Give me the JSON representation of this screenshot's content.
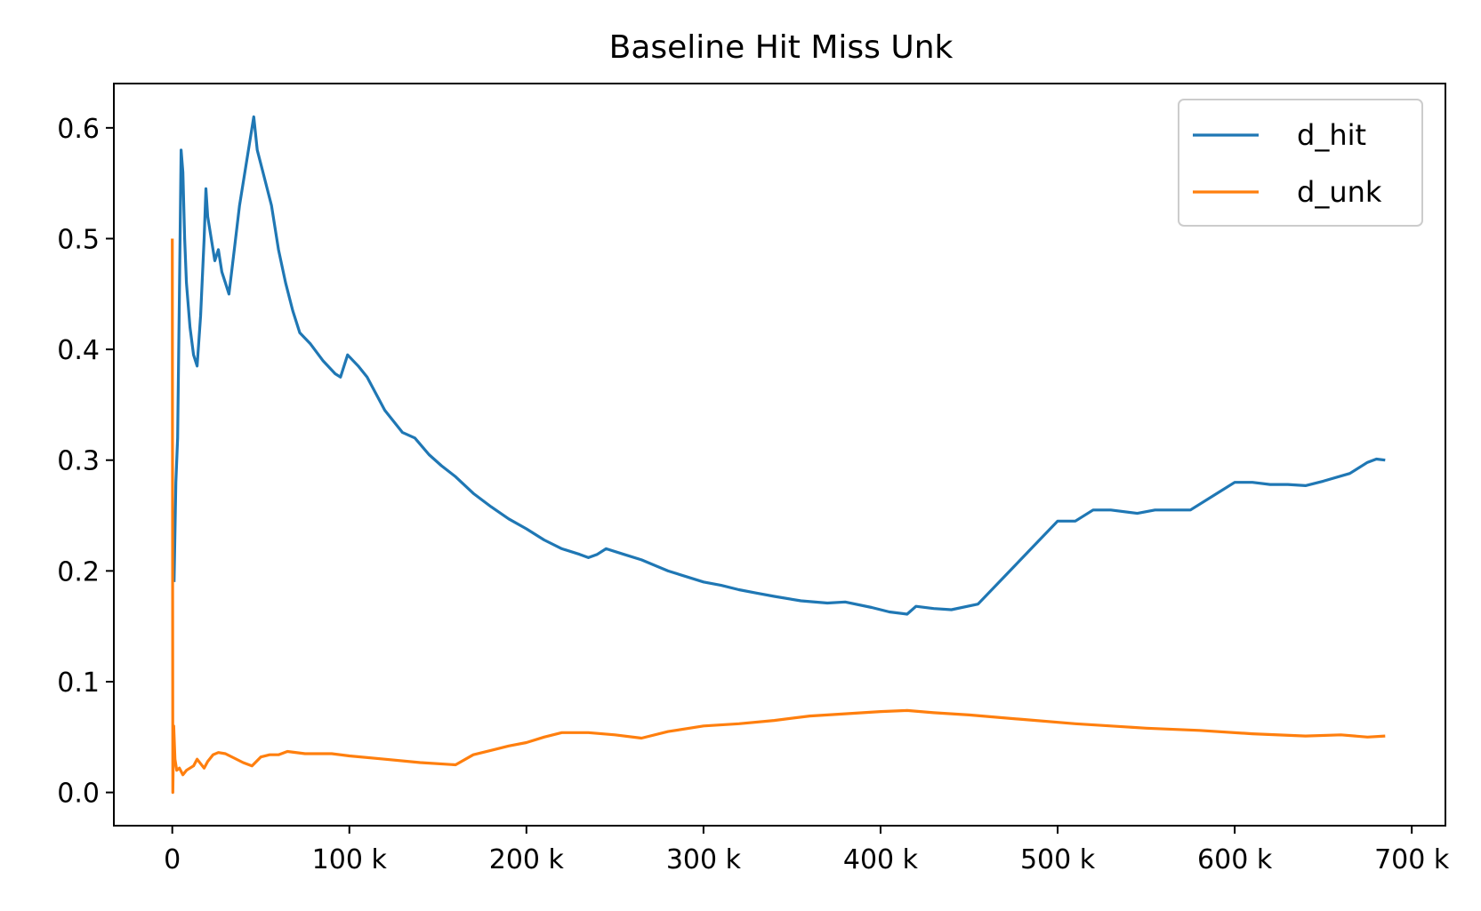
{
  "chart_data": {
    "type": "line",
    "title": "Baseline Hit Miss Unk",
    "xlabel": "",
    "ylabel": "",
    "xlim": [
      -33000,
      719000
    ],
    "ylim": [
      -0.03,
      0.64
    ],
    "xticks": [
      0,
      100000,
      200000,
      300000,
      400000,
      500000,
      600000,
      700000
    ],
    "xtick_labels": [
      "0",
      "100 k",
      "200 k",
      "300 k",
      "400 k",
      "500 k",
      "600 k",
      "700 k"
    ],
    "yticks": [
      0.0,
      0.1,
      0.2,
      0.3,
      0.4,
      0.5,
      0.6
    ],
    "ytick_labels": [
      "0.0",
      "0.1",
      "0.2",
      "0.3",
      "0.4",
      "0.5",
      "0.6"
    ],
    "grid": false,
    "legend_position": "top-right",
    "series": [
      {
        "name": "d_hit",
        "color": "#1f77b4",
        "points": [
          [
            1000,
            0.19
          ],
          [
            2000,
            0.28
          ],
          [
            3000,
            0.32
          ],
          [
            4000,
            0.45
          ],
          [
            5000,
            0.58
          ],
          [
            6000,
            0.56
          ],
          [
            7000,
            0.5
          ],
          [
            8000,
            0.46
          ],
          [
            10000,
            0.42
          ],
          [
            12000,
            0.395
          ],
          [
            14000,
            0.385
          ],
          [
            16000,
            0.43
          ],
          [
            18000,
            0.5
          ],
          [
            19000,
            0.545
          ],
          [
            20000,
            0.52
          ],
          [
            22000,
            0.5
          ],
          [
            24000,
            0.48
          ],
          [
            26000,
            0.49
          ],
          [
            28000,
            0.47
          ],
          [
            30000,
            0.46
          ],
          [
            32000,
            0.45
          ],
          [
            35000,
            0.49
          ],
          [
            38000,
            0.53
          ],
          [
            41000,
            0.56
          ],
          [
            44000,
            0.59
          ],
          [
            46000,
            0.61
          ],
          [
            48000,
            0.58
          ],
          [
            52000,
            0.555
          ],
          [
            56000,
            0.53
          ],
          [
            60000,
            0.49
          ],
          [
            64000,
            0.46
          ],
          [
            68000,
            0.435
          ],
          [
            72000,
            0.415
          ],
          [
            78000,
            0.405
          ],
          [
            85000,
            0.39
          ],
          [
            92000,
            0.378
          ],
          [
            95000,
            0.375
          ],
          [
            99000,
            0.395
          ],
          [
            105000,
            0.385
          ],
          [
            110000,
            0.375
          ],
          [
            120000,
            0.345
          ],
          [
            130000,
            0.325
          ],
          [
            137000,
            0.32
          ],
          [
            145000,
            0.305
          ],
          [
            152000,
            0.295
          ],
          [
            160000,
            0.285
          ],
          [
            170000,
            0.27
          ],
          [
            180000,
            0.258
          ],
          [
            190000,
            0.247
          ],
          [
            200000,
            0.238
          ],
          [
            210000,
            0.228
          ],
          [
            220000,
            0.22
          ],
          [
            230000,
            0.215
          ],
          [
            235000,
            0.212
          ],
          [
            240000,
            0.215
          ],
          [
            245000,
            0.22
          ],
          [
            255000,
            0.215
          ],
          [
            265000,
            0.21
          ],
          [
            280000,
            0.2
          ],
          [
            300000,
            0.19
          ],
          [
            310000,
            0.187
          ],
          [
            320000,
            0.183
          ],
          [
            330000,
            0.18
          ],
          [
            340000,
            0.177
          ],
          [
            355000,
            0.173
          ],
          [
            370000,
            0.171
          ],
          [
            380000,
            0.172
          ],
          [
            395000,
            0.167
          ],
          [
            405000,
            0.163
          ],
          [
            415000,
            0.161
          ],
          [
            420000,
            0.168
          ],
          [
            430000,
            0.166
          ],
          [
            440000,
            0.165
          ],
          [
            455000,
            0.17
          ],
          [
            470000,
            0.195
          ],
          [
            485000,
            0.22
          ],
          [
            500000,
            0.245
          ],
          [
            510000,
            0.245
          ],
          [
            520000,
            0.255
          ],
          [
            530000,
            0.255
          ],
          [
            545000,
            0.252
          ],
          [
            555000,
            0.255
          ],
          [
            575000,
            0.255
          ],
          [
            590000,
            0.27
          ],
          [
            600000,
            0.28
          ],
          [
            610000,
            0.28
          ],
          [
            620000,
            0.278
          ],
          [
            630000,
            0.278
          ],
          [
            640000,
            0.277
          ],
          [
            650000,
            0.281
          ],
          [
            665000,
            0.288
          ],
          [
            675000,
            0.298
          ],
          [
            680000,
            0.301
          ],
          [
            685000,
            0.3
          ]
        ]
      },
      {
        "name": "d_unk",
        "color": "#ff7f0e",
        "points": [
          [
            0,
            0.5
          ],
          [
            300,
            0.0
          ],
          [
            800,
            0.06
          ],
          [
            1500,
            0.03
          ],
          [
            2500,
            0.02
          ],
          [
            4000,
            0.022
          ],
          [
            6000,
            0.016
          ],
          [
            8000,
            0.02
          ],
          [
            10000,
            0.022
          ],
          [
            12000,
            0.024
          ],
          [
            14000,
            0.03
          ],
          [
            16000,
            0.026
          ],
          [
            18000,
            0.022
          ],
          [
            20000,
            0.028
          ],
          [
            23000,
            0.034
          ],
          [
            26000,
            0.036
          ],
          [
            30000,
            0.035
          ],
          [
            35000,
            0.031
          ],
          [
            40000,
            0.027
          ],
          [
            45000,
            0.024
          ],
          [
            50000,
            0.032
          ],
          [
            55000,
            0.034
          ],
          [
            60000,
            0.034
          ],
          [
            65000,
            0.037
          ],
          [
            75000,
            0.035
          ],
          [
            90000,
            0.035
          ],
          [
            100000,
            0.033
          ],
          [
            120000,
            0.03
          ],
          [
            140000,
            0.027
          ],
          [
            160000,
            0.025
          ],
          [
            170000,
            0.034
          ],
          [
            180000,
            0.038
          ],
          [
            190000,
            0.042
          ],
          [
            200000,
            0.045
          ],
          [
            210000,
            0.05
          ],
          [
            220000,
            0.054
          ],
          [
            235000,
            0.054
          ],
          [
            250000,
            0.052
          ],
          [
            265000,
            0.049
          ],
          [
            280000,
            0.055
          ],
          [
            300000,
            0.06
          ],
          [
            320000,
            0.062
          ],
          [
            340000,
            0.065
          ],
          [
            360000,
            0.069
          ],
          [
            380000,
            0.071
          ],
          [
            400000,
            0.073
          ],
          [
            415000,
            0.074
          ],
          [
            430000,
            0.072
          ],
          [
            450000,
            0.07
          ],
          [
            480000,
            0.066
          ],
          [
            510000,
            0.062
          ],
          [
            550000,
            0.058
          ],
          [
            580000,
            0.056
          ],
          [
            610000,
            0.053
          ],
          [
            640000,
            0.051
          ],
          [
            660000,
            0.052
          ],
          [
            675000,
            0.05
          ],
          [
            685000,
            0.051
          ]
        ]
      }
    ]
  }
}
